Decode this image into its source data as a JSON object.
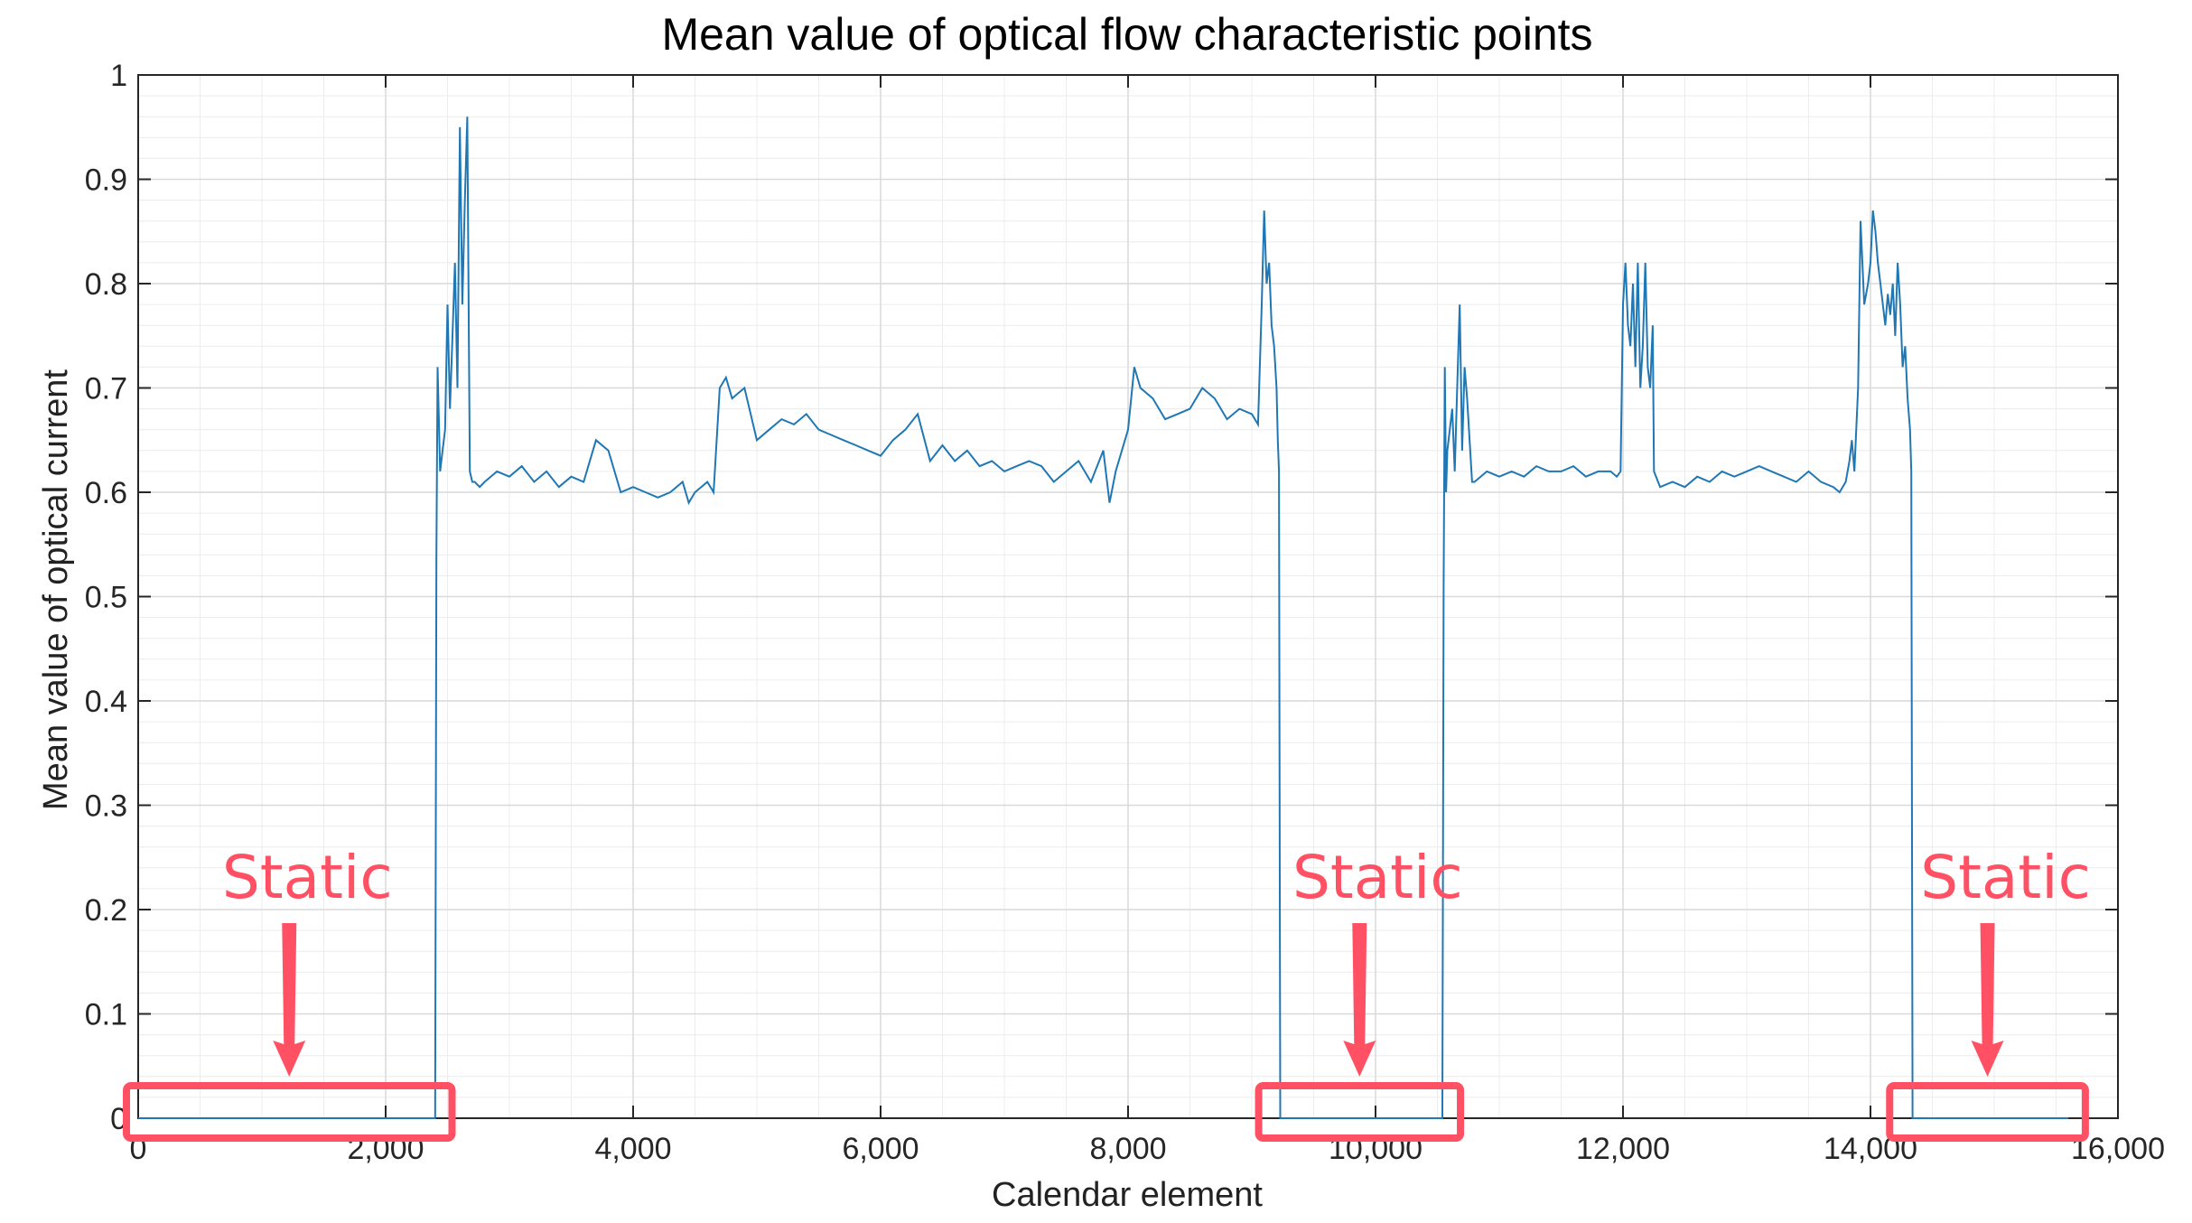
{
  "chart_data": {
    "type": "line",
    "title": "Mean value of optical flow characteristic points",
    "xlabel": "Calendar element",
    "ylabel": "Mean value of optical current",
    "xlim": [
      0,
      16000
    ],
    "ylim": [
      0,
      1
    ],
    "xticks": [
      0,
      2000,
      4000,
      6000,
      8000,
      10000,
      12000,
      14000,
      16000
    ],
    "xtick_labels": [
      "0",
      "2,000",
      "4,000",
      "6,000",
      "8,000",
      "10,000",
      "12,000",
      "14,000",
      "16,000"
    ],
    "yticks": [
      0,
      0.1,
      0.2,
      0.3,
      0.4,
      0.5,
      0.6,
      0.7,
      0.8,
      0.9,
      1
    ],
    "ytick_labels": [
      "0",
      "0.1",
      "0.2",
      "0.3",
      "0.4",
      "0.5",
      "0.6",
      "0.7",
      "0.8",
      "0.9",
      "1"
    ],
    "grid": true,
    "minor_grid": true,
    "line_color": "#1f77b4",
    "series": [
      {
        "x": [
          0,
          2400,
          2410,
          2420,
          2440,
          2460,
          2480,
          2500,
          2520,
          2540,
          2560,
          2580,
          2600,
          2620,
          2640,
          2660,
          2680,
          2700,
          2720,
          2760,
          2800,
          2900,
          3000,
          3100,
          3200,
          3300,
          3400,
          3500,
          3600,
          3700,
          3800,
          3900,
          4000,
          4100,
          4200,
          4300,
          4400,
          4450,
          4500,
          4600,
          4650,
          4700,
          4750,
          4800,
          4850,
          4900,
          5000,
          5100,
          5200,
          5300,
          5400,
          5500,
          5600,
          5700,
          5800,
          5900,
          6000,
          6100,
          6200,
          6300,
          6400,
          6500,
          6600,
          6700,
          6800,
          6900,
          7000,
          7100,
          7200,
          7300,
          7400,
          7500,
          7600,
          7700,
          7800,
          7850,
          7900,
          8000,
          8050,
          8100,
          8200,
          8300,
          8400,
          8500,
          8600,
          8700,
          8800,
          8900,
          9000,
          9050,
          9080,
          9100,
          9120,
          9140,
          9160,
          9180,
          9200,
          9210,
          9220,
          9230,
          10540,
          10550,
          10560,
          10570,
          10580,
          10600,
          10620,
          10640,
          10660,
          10680,
          10700,
          10720,
          10740,
          10780,
          10800,
          10900,
          11000,
          11100,
          11200,
          11300,
          11400,
          11500,
          11600,
          11700,
          11800,
          11900,
          11950,
          11980,
          12000,
          12020,
          12040,
          12060,
          12080,
          12100,
          12120,
          12140,
          12160,
          12180,
          12200,
          12220,
          12240,
          12250,
          12300,
          12400,
          12500,
          12600,
          12700,
          12800,
          12900,
          13000,
          13100,
          13200,
          13300,
          13400,
          13500,
          13600,
          13700,
          13750,
          13800,
          13830,
          13850,
          13870,
          13900,
          13920,
          13950,
          13980,
          14000,
          14020,
          14040,
          14060,
          14080,
          14100,
          14120,
          14140,
          14160,
          14180,
          14200,
          14220,
          14240,
          14260,
          14280,
          14300,
          14320,
          14330,
          14340,
          15600
        ],
        "y": [
          0,
          0,
          0.54,
          0.72,
          0.62,
          0.64,
          0.66,
          0.78,
          0.68,
          0.75,
          0.82,
          0.7,
          0.95,
          0.78,
          0.88,
          0.96,
          0.62,
          0.61,
          0.61,
          0.605,
          0.61,
          0.62,
          0.615,
          0.625,
          0.61,
          0.62,
          0.605,
          0.615,
          0.61,
          0.65,
          0.64,
          0.6,
          0.605,
          0.6,
          0.595,
          0.6,
          0.61,
          0.59,
          0.6,
          0.61,
          0.6,
          0.7,
          0.71,
          0.69,
          0.695,
          0.7,
          0.65,
          0.66,
          0.67,
          0.665,
          0.675,
          0.66,
          0.655,
          0.65,
          0.645,
          0.64,
          0.635,
          0.65,
          0.66,
          0.675,
          0.63,
          0.645,
          0.63,
          0.64,
          0.625,
          0.63,
          0.62,
          0.625,
          0.63,
          0.625,
          0.61,
          0.62,
          0.63,
          0.61,
          0.64,
          0.59,
          0.62,
          0.66,
          0.72,
          0.7,
          0.69,
          0.67,
          0.675,
          0.68,
          0.7,
          0.69,
          0.67,
          0.68,
          0.675,
          0.665,
          0.78,
          0.87,
          0.8,
          0.82,
          0.76,
          0.74,
          0.7,
          0.65,
          0.62,
          0,
          0,
          0.51,
          0.72,
          0.6,
          0.64,
          0.66,
          0.68,
          0.62,
          0.7,
          0.78,
          0.64,
          0.72,
          0.69,
          0.61,
          0.61,
          0.62,
          0.615,
          0.62,
          0.615,
          0.625,
          0.62,
          0.62,
          0.625,
          0.615,
          0.62,
          0.62,
          0.615,
          0.62,
          0.78,
          0.82,
          0.76,
          0.74,
          0.8,
          0.72,
          0.82,
          0.7,
          0.74,
          0.82,
          0.72,
          0.7,
          0.76,
          0.62,
          0.605,
          0.61,
          0.605,
          0.615,
          0.61,
          0.62,
          0.615,
          0.62,
          0.625,
          0.62,
          0.615,
          0.61,
          0.62,
          0.61,
          0.605,
          0.6,
          0.61,
          0.63,
          0.65,
          0.62,
          0.7,
          0.86,
          0.78,
          0.8,
          0.82,
          0.87,
          0.85,
          0.82,
          0.8,
          0.78,
          0.76,
          0.79,
          0.77,
          0.8,
          0.75,
          0.82,
          0.78,
          0.72,
          0.74,
          0.69,
          0.66,
          0.62,
          0,
          0
        ]
      }
    ],
    "annotations": [
      {
        "text": "Static",
        "x_range": [
          0,
          2500
        ]
      },
      {
        "text": "Static",
        "x_range": [
          9150,
          10650
        ]
      },
      {
        "text": "Static",
        "x_range": [
          14250,
          15700
        ]
      }
    ]
  }
}
